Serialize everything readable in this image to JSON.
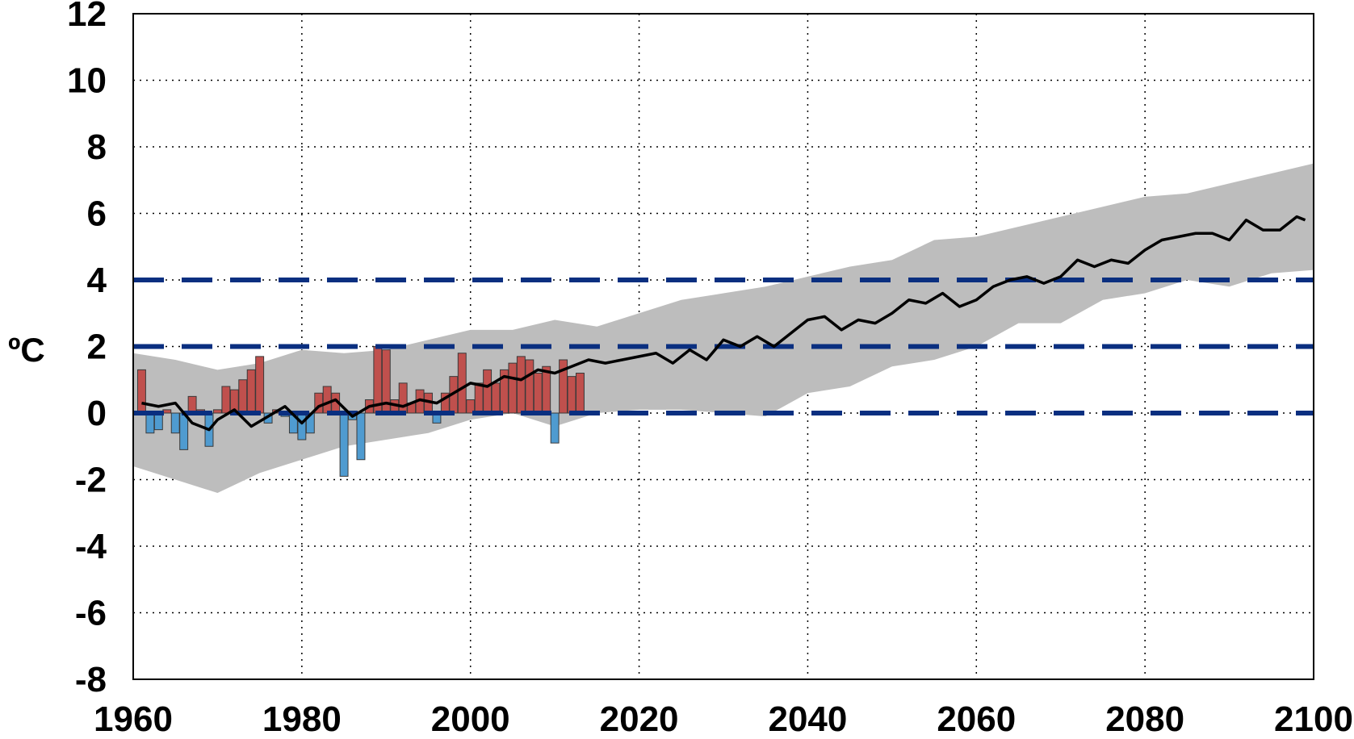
{
  "chart_data": {
    "type": "bar",
    "title": "",
    "xlabel": "",
    "ylabel": "ºC",
    "xlim": [
      1960,
      2100
    ],
    "ylim": [
      -8,
      12
    ],
    "x_ticks": [
      "1960",
      "1980",
      "2000",
      "2020",
      "2040",
      "2060",
      "2080",
      "2100"
    ],
    "y_ticks": [
      "12",
      "10",
      "8",
      "6",
      "4",
      "2",
      "0",
      "-2",
      "-4",
      "-6",
      "-8"
    ],
    "grid": true,
    "legend": "none",
    "colors": {
      "positive_bar": "#c0504d",
      "negative_bar": "#4f9bd0",
      "ensemble_band": "#bdbdbd",
      "ensemble_mean": "#000000",
      "thresholds": "#0a2f80"
    },
    "thresholds": [
      0,
      2,
      4
    ],
    "observed_anomaly_bars": {
      "years": [
        1961,
        1962,
        1963,
        1964,
        1965,
        1966,
        1967,
        1968,
        1969,
        1970,
        1971,
        1972,
        1973,
        1974,
        1975,
        1976,
        1977,
        1978,
        1979,
        1980,
        1981,
        1982,
        1983,
        1984,
        1985,
        1986,
        1987,
        1988,
        1989,
        1990,
        1991,
        1992,
        1993,
        1994,
        1995,
        1996,
        1997,
        1998,
        1999,
        2000,
        2001,
        2002,
        2003,
        2004,
        2005,
        2006,
        2007,
        2008,
        2009,
        2010,
        2011,
        2012,
        2013
      ],
      "values": [
        1.3,
        -0.6,
        -0.5,
        0.1,
        -0.6,
        -1.1,
        0.5,
        0.1,
        -1.0,
        0.1,
        0.8,
        0.7,
        1.0,
        1.3,
        1.7,
        -0.3,
        0.1,
        -0.1,
        -0.6,
        -0.8,
        -0.6,
        0.6,
        0.8,
        0.6,
        -1.9,
        -0.2,
        -1.4,
        0.4,
        2.0,
        1.9,
        0.4,
        0.9,
        0.3,
        0.7,
        0.6,
        -0.3,
        0.6,
        1.1,
        1.8,
        0.4,
        0.9,
        1.3,
        0.9,
        1.3,
        1.5,
        1.7,
        1.6,
        1.2,
        1.4,
        -0.9,
        1.6,
        1.1,
        1.2
      ]
    },
    "ensemble_mean": {
      "x": [
        1961,
        1963,
        1965,
        1967,
        1969,
        1970,
        1972,
        1974,
        1976,
        1978,
        1980,
        1982,
        1984,
        1986,
        1988,
        1990,
        1992,
        1994,
        1996,
        1998,
        2000,
        2002,
        2004,
        2006,
        2008,
        2010,
        2012,
        2014,
        2016,
        2018,
        2020,
        2022,
        2024,
        2026,
        2028,
        2030,
        2032,
        2034,
        2036,
        2038,
        2040,
        2042,
        2044,
        2046,
        2048,
        2050,
        2052,
        2054,
        2056,
        2058,
        2060,
        2062,
        2064,
        2066,
        2068,
        2070,
        2072,
        2074,
        2076,
        2078,
        2080,
        2082,
        2084,
        2086,
        2088,
        2090,
        2092,
        2094,
        2096,
        2098,
        2099
      ],
      "y": [
        0.3,
        0.2,
        0.3,
        -0.3,
        -0.5,
        -0.2,
        0.1,
        -0.4,
        -0.1,
        0.2,
        -0.3,
        0.2,
        0.4,
        -0.1,
        0.2,
        0.3,
        0.2,
        0.4,
        0.3,
        0.6,
        0.9,
        0.8,
        1.1,
        1.0,
        1.3,
        1.2,
        1.4,
        1.6,
        1.5,
        1.6,
        1.7,
        1.8,
        1.5,
        1.9,
        1.6,
        2.2,
        2.0,
        2.3,
        2.0,
        2.4,
        2.8,
        2.9,
        2.5,
        2.8,
        2.7,
        3.0,
        3.4,
        3.3,
        3.6,
        3.2,
        3.4,
        3.8,
        4.0,
        4.1,
        3.9,
        4.1,
        4.6,
        4.4,
        4.6,
        4.5,
        4.9,
        5.2,
        5.3,
        5.4,
        5.4,
        5.2,
        5.8,
        5.5,
        5.5,
        5.9,
        5.8
      ]
    },
    "ensemble_spread": {
      "x": [
        1960,
        1965,
        1970,
        1975,
        1980,
        1985,
        1990,
        1995,
        2000,
        2005,
        2010,
        2015,
        2020,
        2025,
        2030,
        2035,
        2040,
        2045,
        2050,
        2055,
        2060,
        2065,
        2070,
        2075,
        2080,
        2085,
        2090,
        2095,
        2100
      ],
      "upper": [
        1.8,
        1.6,
        1.3,
        1.5,
        1.9,
        1.8,
        1.9,
        2.2,
        2.5,
        2.5,
        2.8,
        2.6,
        3.0,
        3.4,
        3.6,
        3.8,
        4.1,
        4.4,
        4.6,
        5.2,
        5.3,
        5.6,
        5.9,
        6.2,
        6.5,
        6.6,
        6.9,
        7.2,
        7.5
      ],
      "lower": [
        -1.6,
        -2.0,
        -2.4,
        -1.8,
        -1.4,
        -1.0,
        -0.8,
        -0.6,
        -0.2,
        0.0,
        -0.4,
        0.0,
        0.1,
        0.1,
        0.0,
        -0.1,
        0.6,
        0.8,
        1.4,
        1.6,
        2.0,
        2.7,
        2.7,
        3.4,
        3.6,
        4.0,
        3.8,
        4.2,
        4.3
      ]
    }
  }
}
